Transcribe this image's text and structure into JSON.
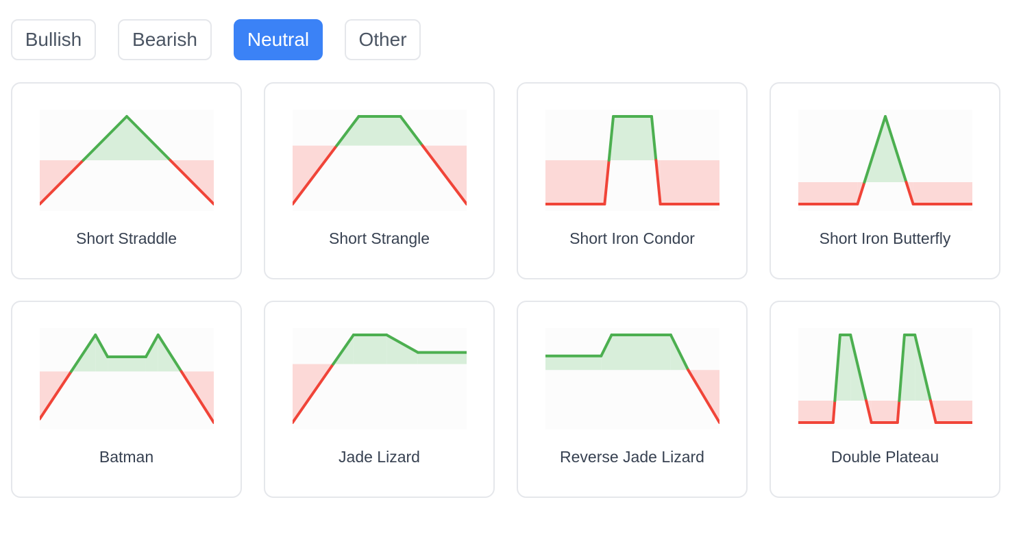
{
  "tabs": [
    {
      "label": "Bullish",
      "active": false
    },
    {
      "label": "Bearish",
      "active": false
    },
    {
      "label": "Neutral",
      "active": true
    },
    {
      "label": "Other",
      "active": false
    }
  ],
  "colors": {
    "profit": "#4caf50",
    "profit_fill": "#d8eeda",
    "loss": "#f04438",
    "loss_fill": "#fcd9d7",
    "chart_bg": "#fcfcfc",
    "tab_active": "#3b82f6"
  },
  "strategies": [
    {
      "name": "Short Straddle",
      "payoff": [
        [
          0,
          -1
        ],
        [
          5,
          1
        ],
        [
          10,
          -1
        ]
      ]
    },
    {
      "name": "Short Strangle",
      "payoff": [
        [
          0,
          -1.2
        ],
        [
          3.8,
          0.6
        ],
        [
          6.2,
          0.6
        ],
        [
          10,
          -1.2
        ]
      ]
    },
    {
      "name": "Short Iron Condor",
      "payoff": [
        [
          0,
          -1
        ],
        [
          3.4,
          -1
        ],
        [
          3.9,
          1
        ],
        [
          6.1,
          1
        ],
        [
          6.6,
          -1
        ],
        [
          10,
          -1
        ]
      ]
    },
    {
      "name": "Short Iron Butterfly",
      "payoff": [
        [
          0,
          -1
        ],
        [
          3.4,
          -1
        ],
        [
          5,
          3
        ],
        [
          6.6,
          -1
        ],
        [
          10,
          -1
        ]
      ]
    },
    {
      "name": "Batman",
      "payoff": [
        [
          0,
          -1.3
        ],
        [
          3.2,
          1
        ],
        [
          3.9,
          0.4
        ],
        [
          6.1,
          0.4
        ],
        [
          6.8,
          1
        ],
        [
          10,
          -1.4
        ]
      ]
    },
    {
      "name": "Jade Lizard",
      "payoff": [
        [
          0,
          -2
        ],
        [
          3.5,
          1
        ],
        [
          5.4,
          1
        ],
        [
          7.2,
          0.4
        ],
        [
          10,
          0.4
        ]
      ]
    },
    {
      "name": "Reverse Jade Lizard",
      "payoff": [
        [
          0,
          0.4
        ],
        [
          3.2,
          0.4
        ],
        [
          3.8,
          1
        ],
        [
          7.2,
          1
        ],
        [
          8.2,
          0
        ],
        [
          10,
          -1.5
        ]
      ]
    },
    {
      "name": "Double Plateau",
      "payoff": [
        [
          0,
          -1
        ],
        [
          2,
          -1
        ],
        [
          2.4,
          3
        ],
        [
          3,
          3
        ],
        [
          4.2,
          -1
        ],
        [
          5.7,
          -1
        ],
        [
          6.1,
          3
        ],
        [
          6.7,
          3
        ],
        [
          7.9,
          -1
        ],
        [
          10,
          -1
        ]
      ]
    }
  ]
}
